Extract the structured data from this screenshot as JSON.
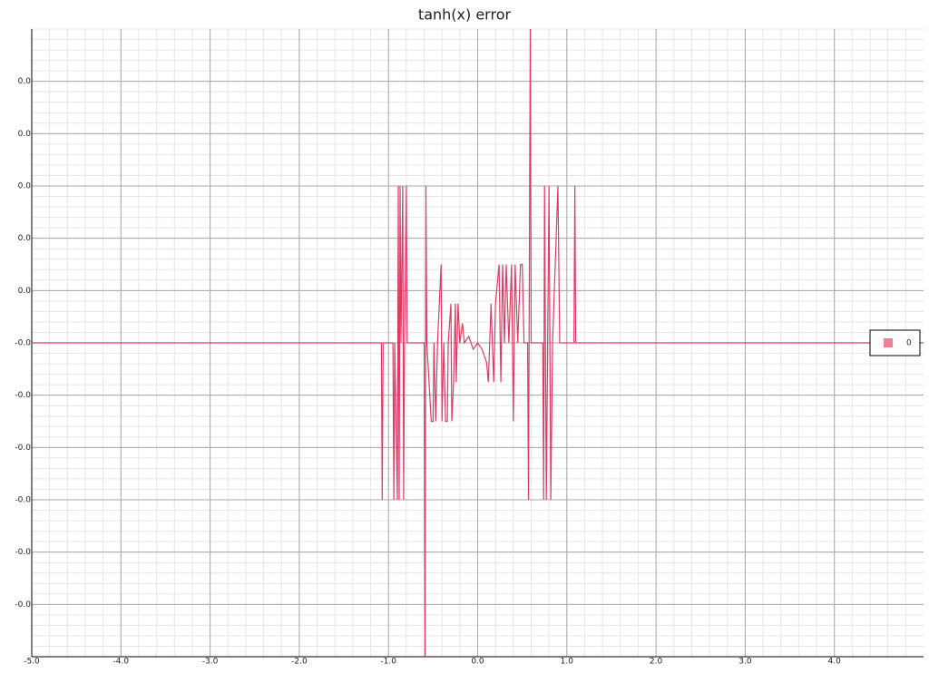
{
  "chart_data": {
    "type": "line",
    "title": "tanh(x) error",
    "x": [
      -5,
      -1.08,
      -1.07,
      -1.06,
      -0.95,
      -0.94,
      -0.93,
      -0.9,
      -0.89,
      -0.88,
      -0.87,
      -0.86,
      -0.84,
      -0.83,
      -0.82,
      -0.8,
      -0.79,
      -0.6,
      -0.59,
      -0.58,
      -0.57,
      -0.52,
      -0.5,
      -0.49,
      -0.47,
      -0.45,
      -0.41,
      -0.4,
      -0.38,
      -0.36,
      -0.34,
      -0.33,
      -0.3,
      -0.29,
      -0.27,
      -0.25,
      -0.24,
      -0.22,
      -0.2,
      -0.17,
      -0.15,
      -0.1,
      -0.05,
      0,
      0.05,
      0.1,
      0.12,
      0.15,
      0.18,
      0.2,
      0.24,
      0.26,
      0.28,
      0.3,
      0.32,
      0.35,
      0.38,
      0.4,
      0.42,
      0.45,
      0.48,
      0.5,
      0.52,
      0.56,
      0.57,
      0.59,
      0.6,
      0.73,
      0.74,
      0.75,
      0.77,
      0.8,
      0.82,
      0.84,
      0.9,
      0.92,
      1.08,
      1.09,
      1.1,
      5
    ],
    "series": [
      {
        "name": "0",
        "color": "#dc3c64",
        "legend_color": "#f08098",
        "values": [
          0,
          0,
          -1.2e-16,
          0,
          0,
          -1.2e-16,
          0,
          -1.2e-16,
          1.2e-16,
          -1.2e-16,
          1.2e-16,
          0,
          1.2e-16,
          -1.2e-16,
          0,
          1.2e-16,
          0,
          0,
          -2.4e-16,
          1.2e-16,
          0,
          -6e-17,
          -6e-17,
          0,
          -6e-17,
          0,
          6e-17,
          -6e-17,
          0,
          -6e-17,
          -6e-17,
          0,
          3e-17,
          -6e-17,
          -3e-17,
          3e-17,
          -3e-17,
          3e-17,
          0,
          1.5e-17,
          0,
          5e-18,
          -5e-18,
          0,
          -5e-18,
          -1.5e-17,
          -3e-17,
          3e-17,
          -3e-17,
          3e-17,
          6e-17,
          -3e-17,
          6e-17,
          0,
          6e-17,
          0,
          6e-17,
          -6e-17,
          6e-17,
          0,
          6e-17,
          6e-17,
          0,
          0,
          -1.2e-16,
          2.4e-16,
          0,
          0,
          -1.2e-16,
          1.2e-16,
          -1.2e-16,
          1.2e-16,
          -1.2e-16,
          0,
          1.2e-16,
          0,
          0,
          1.2e-16,
          0,
          0
        ]
      }
    ],
    "xlim": [
      -5,
      5
    ],
    "xticks": [
      {
        "value": -5,
        "label": "-5.0"
      },
      {
        "value": -4,
        "label": "-4.0"
      },
      {
        "value": -3,
        "label": "-3.0"
      },
      {
        "value": -2,
        "label": "-2.0"
      },
      {
        "value": -1,
        "label": "-1.0"
      },
      {
        "value": 0,
        "label": "0.0"
      },
      {
        "value": 1,
        "label": "1.0"
      },
      {
        "value": 2,
        "label": "2.0"
      },
      {
        "value": 3,
        "label": "3.0"
      },
      {
        "value": 4,
        "label": "4.0"
      }
    ],
    "ylim": [
      -2.4e-16,
      2.4e-16
    ],
    "yticks": [
      {
        "value": -2e-16,
        "label": "-0.0"
      },
      {
        "value": -1.6e-16,
        "label": "-0.0"
      },
      {
        "value": -1.2e-16,
        "label": "-0.0"
      },
      {
        "value": -8e-17,
        "label": "-0.0"
      },
      {
        "value": -4e-17,
        "label": "-0.0"
      },
      {
        "value": 0,
        "label": "-0.0"
      },
      {
        "value": 4e-17,
        "label": "0.0"
      },
      {
        "value": 8e-17,
        "label": "0.0"
      },
      {
        "value": 1.2e-16,
        "label": "0.0"
      },
      {
        "value": 1.6e-16,
        "label": "0.0"
      },
      {
        "value": 2e-16,
        "label": "0.0"
      }
    ],
    "grid": true,
    "legend": "right"
  }
}
